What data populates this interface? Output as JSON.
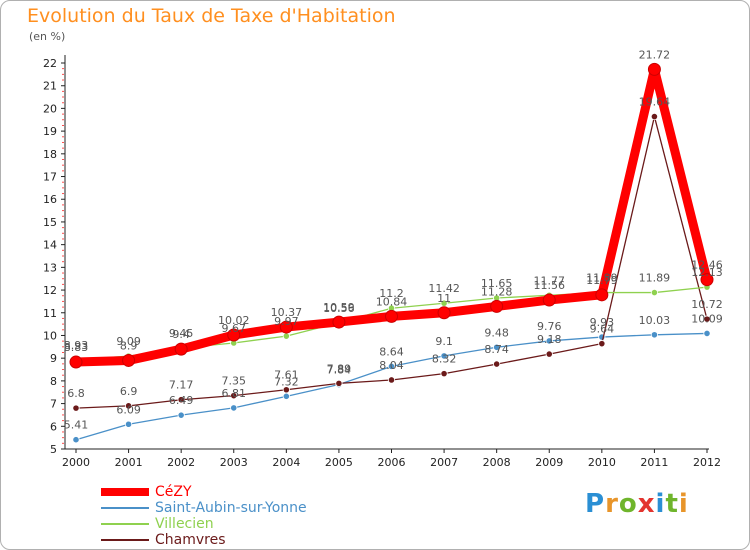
{
  "title": "Evolution du Taux de Taxe d'Habitation",
  "subtitle": "(en %)",
  "brand": {
    "text": "Proxiti",
    "letter_colors": [
      "#2a8fd4",
      "#e8952a",
      "#6fb52c",
      "#e3342f",
      "#2a8fd4",
      "#6fb52c",
      "#e8952a"
    ]
  },
  "chart_data": {
    "type": "line",
    "title": "Evolution du Taux de Taxe d'Habitation",
    "ylabel": "(en %)",
    "xlabel": "",
    "categories": [
      "2000",
      "2001",
      "2002",
      "2003",
      "2004",
      "2005",
      "2006",
      "2007",
      "2008",
      "2009",
      "2010",
      "2011",
      "2012"
    ],
    "ylim": [
      5,
      22
    ],
    "yticks": [
      5,
      6,
      7,
      8,
      9,
      10,
      11,
      12,
      13,
      14,
      15,
      16,
      17,
      18,
      19,
      20,
      21,
      22
    ],
    "grid": false,
    "legend_position": "bottom-left",
    "series": [
      {
        "name": "CéZY",
        "color": "#ff0000",
        "values": [
          8.83,
          8.9,
          9.4,
          10.02,
          10.37,
          10.59,
          10.84,
          11.0,
          11.28,
          11.56,
          11.79,
          21.72,
          12.46
        ],
        "labels": [
          "8.83",
          "8.9",
          "9.4",
          "10.02",
          "10.37",
          "10.59",
          "10.84",
          "11",
          "11.28",
          "11.56",
          "11.79",
          "21.72",
          "12.46"
        ]
      },
      {
        "name": "Saint-Aubin-sur-Yonne",
        "color": "#4a90c8",
        "values": [
          5.41,
          6.09,
          6.49,
          6.81,
          7.32,
          7.84,
          8.64,
          9.1,
          9.48,
          9.76,
          9.93,
          10.03,
          10.09
        ],
        "labels": [
          "5.41",
          "6.09",
          "6.49",
          "6.81",
          "7.32",
          "7.84",
          "8.64",
          "9.1",
          "9.48",
          "9.76",
          "9.93",
          "10.03",
          "10.09"
        ]
      },
      {
        "name": "Villecien",
        "color": "#8fd14f",
        "values": [
          8.93,
          9.09,
          9.45,
          9.67,
          9.97,
          10.56,
          11.2,
          11.42,
          11.65,
          11.77,
          11.89,
          11.89,
          12.13
        ],
        "labels": [
          "8.93",
          "9.09",
          "9.45",
          "9.67",
          "9.97",
          "10.56",
          "11.2",
          "11.42",
          "11.65",
          "11.77",
          "11.89",
          "11.89",
          "12.13"
        ]
      },
      {
        "name": "Chamvres",
        "color": "#6b1a1a",
        "values": [
          6.8,
          6.9,
          7.17,
          7.35,
          7.61,
          7.89,
          8.04,
          8.32,
          8.74,
          9.18,
          9.64,
          19.64,
          10.72
        ],
        "labels": [
          "6.8",
          "6.9",
          "7.17",
          "7.35",
          "7.61",
          "7.89",
          "8.04",
          "8.32",
          "8.74",
          "9.18",
          "9.64",
          "19.64",
          "10.72"
        ]
      }
    ]
  }
}
